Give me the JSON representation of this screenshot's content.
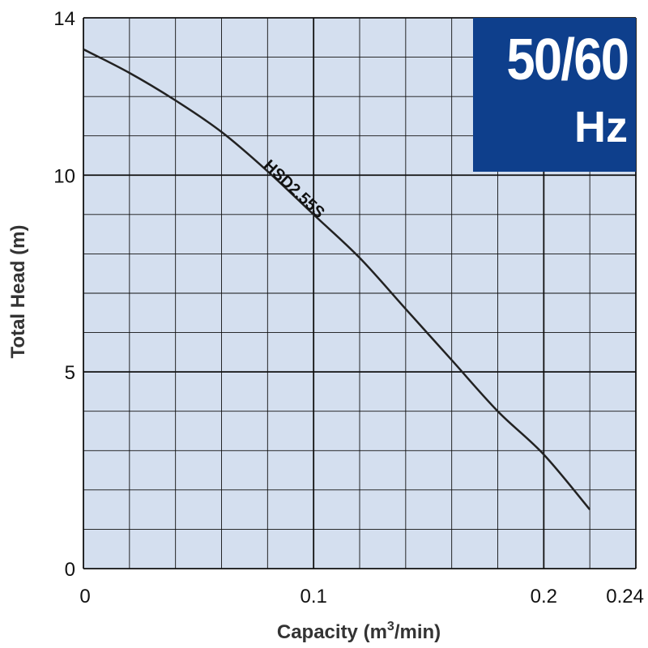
{
  "chart_data": {
    "type": "line",
    "xlabel": "Capacity (m",
    "xlabel_sup": "3",
    "xlabel_tail": "/min)",
    "ylabel": "Total Head (m)",
    "xlim": [
      0,
      0.24
    ],
    "ylim": [
      0,
      14
    ],
    "x_ticks": [
      0,
      0.1,
      0.2,
      0.24
    ],
    "x_tick_labels": [
      "0",
      "0.1",
      "0.2",
      "0.24"
    ],
    "y_ticks": [
      0,
      5,
      10,
      14
    ],
    "y_tick_labels": [
      "0",
      "5",
      "10",
      "14"
    ],
    "x_minor_step": 0.02,
    "y_minor_step": 1,
    "grid": true,
    "series": [
      {
        "name": "HSD2.55S",
        "x": [
          0,
          0.02,
          0.04,
          0.06,
          0.08,
          0.1,
          0.12,
          0.14,
          0.16,
          0.18,
          0.2,
          0.22
        ],
        "y": [
          13.2,
          12.6,
          11.9,
          11.1,
          10.1,
          9.0,
          7.9,
          6.6,
          5.3,
          4.0,
          2.9,
          1.5
        ]
      }
    ],
    "badge": {
      "value": "50/60",
      "unit": "Hz"
    },
    "colors": {
      "plot_bg": "#d4dfef",
      "grid": "#111111",
      "curve": "#222222",
      "badge_bg": "#0e3f8c",
      "badge_text": "#ffffff"
    }
  }
}
